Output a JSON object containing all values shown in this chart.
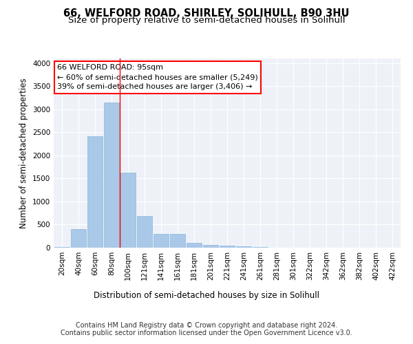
{
  "title": "66, WELFORD ROAD, SHIRLEY, SOLIHULL, B90 3HU",
  "subtitle": "Size of property relative to semi-detached houses in Solihull",
  "xlabel": "Distribution of semi-detached houses by size in Solihull",
  "ylabel": "Number of semi-detached properties",
  "categories": [
    "20sqm",
    "40sqm",
    "60sqm",
    "80sqm",
    "100sqm",
    "121sqm",
    "141sqm",
    "161sqm",
    "181sqm",
    "201sqm",
    "221sqm",
    "241sqm",
    "261sqm",
    "281sqm",
    "301sqm",
    "322sqm",
    "342sqm",
    "362sqm",
    "382sqm",
    "402sqm",
    "422sqm"
  ],
  "values": [
    10,
    400,
    2420,
    3140,
    1620,
    690,
    295,
    295,
    110,
    55,
    45,
    30,
    10,
    5,
    3,
    3,
    2,
    2,
    1,
    1,
    1
  ],
  "bar_color": "#aac8e8",
  "bar_edgecolor": "#88b8dc",
  "vline_color": "red",
  "annotation_text": "66 WELFORD ROAD: 95sqm\n← 60% of semi-detached houses are smaller (5,249)\n39% of semi-detached houses are larger (3,406) →",
  "annotation_box_edgecolor": "red",
  "footnote": "Contains HM Land Registry data © Crown copyright and database right 2024.\nContains public sector information licensed under the Open Government Licence v3.0.",
  "ylim": [
    0,
    4100
  ],
  "background_color": "#eef2f8",
  "grid_color": "#ffffff",
  "title_fontsize": 10.5,
  "subtitle_fontsize": 9.5,
  "axis_label_fontsize": 8.5,
  "tick_fontsize": 7.5,
  "annotation_fontsize": 8.0,
  "footnote_fontsize": 7.0
}
